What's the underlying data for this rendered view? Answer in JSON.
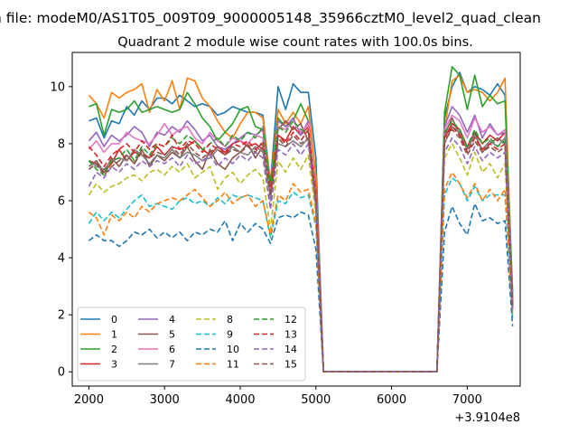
{
  "figure": {
    "suptitle": "n file: modeM0/AS1T05_009T09_9000005148_35966cztM0_level2_quad_clean",
    "title": "Quadrant 2 module wise count rates with 100.0s bins.",
    "offset_label": "+3.9104e8"
  },
  "chart_data": {
    "type": "line",
    "title": "Quadrant 2 module wise count rates with 100.0s bins.",
    "xlabel": "",
    "ylabel": "",
    "x_offset": 391040000,
    "xlim": [
      1780,
      7700
    ],
    "ylim": [
      -0.5,
      11.2
    ],
    "xticks": [
      2000,
      3000,
      4000,
      5000,
      6000,
      7000
    ],
    "yticks": [
      0,
      2,
      4,
      6,
      8,
      10
    ],
    "grid": false,
    "legend": {
      "placement": "lower-left",
      "columns": 4
    },
    "x": [
      2000,
      2100,
      2200,
      2300,
      2400,
      2500,
      2600,
      2700,
      2800,
      2900,
      3000,
      3100,
      3200,
      3300,
      3400,
      3500,
      3600,
      3700,
      3800,
      3900,
      4000,
      4100,
      4200,
      4300,
      4400,
      4500,
      4600,
      4700,
      4800,
      4900,
      5000,
      5100,
      5200,
      5300,
      5400,
      5500,
      5600,
      5700,
      5800,
      5900,
      6000,
      6100,
      6200,
      6300,
      6400,
      6500,
      6600,
      6700,
      6800,
      6900,
      7000,
      7100,
      7200,
      7300,
      7400,
      7500,
      7600
    ],
    "series": [
      {
        "name": "0",
        "color": "#1f77b4",
        "dash": "solid",
        "values": [
          8.8,
          8.9,
          8.2,
          8.8,
          8.7,
          9.3,
          9.0,
          9.5,
          9.2,
          9.6,
          9.6,
          9.4,
          9.7,
          9.5,
          9.3,
          9.4,
          9.3,
          9.0,
          9.1,
          9.3,
          9.2,
          9.1,
          9.1,
          9.0,
          6.6,
          10.0,
          9.2,
          10.1,
          9.8,
          9.8,
          7.5,
          0,
          0,
          0,
          0,
          0,
          0,
          0,
          0,
          0,
          0,
          0,
          0,
          0,
          0,
          0,
          0,
          8.9,
          10.0,
          10.5,
          9.8,
          10.0,
          9.9,
          9.7,
          10.1,
          9.7,
          2.8
        ]
      },
      {
        "name": "1",
        "color": "#ff7f0e",
        "dash": "solid",
        "values": [
          9.7,
          9.4,
          8.9,
          9.8,
          9.6,
          9.8,
          9.9,
          10.1,
          9.1,
          9.9,
          9.5,
          10.2,
          9.2,
          10.3,
          10.2,
          9.6,
          9.3,
          8.8,
          8.4,
          8.2,
          8.7,
          9.1,
          9.1,
          8.9,
          6.5,
          9.2,
          8.7,
          9.1,
          8.7,
          9.3,
          6.9,
          0,
          0,
          0,
          0,
          0,
          0,
          0,
          0,
          0,
          0,
          0,
          0,
          0,
          0,
          0,
          0,
          8.5,
          10.2,
          10.4,
          9.8,
          9.9,
          9.8,
          9.5,
          9.8,
          10.3,
          2.4
        ]
      },
      {
        "name": "2",
        "color": "#2ca02c",
        "dash": "solid",
        "values": [
          9.3,
          9.4,
          8.3,
          9.2,
          9.1,
          9.2,
          9.5,
          9.1,
          9.2,
          9.3,
          9.2,
          9.1,
          9.2,
          9.8,
          9.4,
          8.9,
          8.6,
          8.1,
          8.4,
          8.7,
          9.2,
          9.3,
          8.6,
          8.5,
          6.3,
          8.9,
          8.6,
          8.8,
          9.4,
          8.8,
          6.3,
          0,
          0,
          0,
          0,
          0,
          0,
          0,
          0,
          0,
          0,
          0,
          0,
          0,
          0,
          0,
          0,
          9.1,
          10.7,
          10.4,
          9.2,
          10.4,
          9.3,
          9.7,
          9.4,
          9.5,
          2.6
        ]
      },
      {
        "name": "3",
        "color": "#d62728",
        "dash": "solid",
        "values": [
          7.4,
          7.3,
          7.0,
          7.3,
          7.8,
          7.4,
          7.7,
          7.6,
          7.5,
          7.9,
          7.6,
          7.9,
          7.8,
          7.9,
          8.1,
          7.8,
          7.6,
          7.9,
          7.7,
          8.0,
          8.1,
          7.9,
          8.0,
          7.8,
          6.6,
          8.3,
          8.1,
          8.6,
          8.3,
          8.6,
          6.4,
          0,
          0,
          0,
          0,
          0,
          0,
          0,
          0,
          0,
          0,
          0,
          0,
          0,
          0,
          0,
          0,
          8.2,
          8.7,
          8.5,
          7.9,
          8.4,
          8.0,
          8.3,
          8.1,
          8.4,
          2.5
        ]
      },
      {
        "name": "4",
        "color": "#9467bd",
        "dash": "solid",
        "values": [
          8.1,
          8.4,
          7.9,
          8.3,
          8.1,
          8.3,
          8.6,
          8.4,
          7.9,
          8.4,
          8.3,
          8.6,
          8.4,
          8.8,
          8.5,
          8.1,
          8.3,
          7.9,
          7.8,
          8.0,
          8.2,
          8.4,
          8.3,
          8.5,
          6.0,
          8.8,
          8.6,
          8.9,
          8.3,
          8.8,
          6.1,
          0,
          0,
          0,
          0,
          0,
          0,
          0,
          0,
          0,
          0,
          0,
          0,
          0,
          0,
          0,
          0,
          8.6,
          9.3,
          9.0,
          8.4,
          9.0,
          8.2,
          8.7,
          8.3,
          8.4,
          2.4
        ]
      },
      {
        "name": "5",
        "color": "#8c564b",
        "dash": "solid",
        "values": [
          7.2,
          7.4,
          7.0,
          7.5,
          7.2,
          7.6,
          7.3,
          7.8,
          7.2,
          7.6,
          7.4,
          7.7,
          7.5,
          7.9,
          7.4,
          7.1,
          7.8,
          7.3,
          7.1,
          7.5,
          7.7,
          8.0,
          7.5,
          7.9,
          6.4,
          8.5,
          8.8,
          8.5,
          8.7,
          8.1,
          5.9,
          0,
          0,
          0,
          0,
          0,
          0,
          0,
          0,
          0,
          0,
          0,
          0,
          0,
          0,
          0,
          0,
          8.3,
          8.9,
          8.3,
          7.8,
          8.4,
          7.7,
          8.0,
          8.2,
          8.0,
          2.3
        ]
      },
      {
        "name": "6",
        "color": "#e377c2",
        "dash": "solid",
        "values": [
          7.8,
          8.1,
          7.7,
          8.0,
          8.0,
          8.4,
          8.2,
          8.1,
          8.0,
          8.3,
          8.7,
          8.3,
          8.5,
          8.6,
          8.2,
          8.0,
          8.4,
          8.1,
          7.9,
          8.2,
          8.1,
          8.0,
          8.3,
          8.2,
          6.2,
          8.6,
          8.5,
          8.8,
          8.4,
          8.7,
          6.2,
          0,
          0,
          0,
          0,
          0,
          0,
          0,
          0,
          0,
          0,
          0,
          0,
          0,
          0,
          0,
          0,
          8.5,
          9.0,
          8.8,
          8.2,
          8.9,
          8.4,
          8.6,
          8.3,
          8.5,
          2.4
        ]
      },
      {
        "name": "7",
        "color": "#7f7f7f",
        "dash": "solid",
        "values": [
          7.4,
          7.2,
          7.1,
          7.4,
          7.5,
          7.4,
          7.8,
          7.6,
          7.3,
          7.6,
          7.5,
          7.8,
          7.5,
          7.7,
          7.6,
          7.4,
          7.5,
          7.8,
          7.6,
          7.9,
          7.7,
          7.6,
          7.9,
          7.7,
          6.1,
          8.0,
          7.9,
          8.1,
          7.9,
          8.2,
          5.8,
          0,
          0,
          0,
          0,
          0,
          0,
          0,
          0,
          0,
          0,
          0,
          0,
          0,
          0,
          0,
          0,
          8.0,
          8.6,
          8.4,
          7.8,
          8.3,
          7.8,
          8.1,
          7.9,
          8.2,
          2.2
        ]
      },
      {
        "name": "8",
        "color": "#bcbd22",
        "dash": "dashed",
        "values": [
          6.2,
          6.6,
          6.3,
          6.5,
          6.6,
          6.8,
          6.9,
          6.7,
          7.0,
          7.1,
          6.9,
          7.2,
          7.0,
          7.3,
          6.8,
          7.0,
          7.2,
          6.4,
          6.8,
          7.0,
          6.6,
          6.9,
          7.1,
          6.8,
          5.0,
          7.4,
          7.0,
          7.5,
          7.1,
          7.6,
          5.5,
          0,
          0,
          0,
          0,
          0,
          0,
          0,
          0,
          0,
          0,
          0,
          0,
          0,
          0,
          0,
          0,
          7.5,
          8.0,
          7.5,
          6.9,
          7.7,
          7.0,
          7.3,
          6.8,
          7.3,
          2.0
        ]
      },
      {
        "name": "9",
        "color": "#17becf",
        "dash": "dashed",
        "values": [
          5.2,
          5.6,
          5.3,
          5.6,
          5.4,
          5.7,
          6.0,
          6.2,
          5.8,
          5.9,
          5.8,
          5.7,
          6.0,
          6.1,
          5.9,
          6.0,
          5.8,
          6.1,
          5.9,
          6.2,
          6.1,
          6.2,
          6.1,
          6.0,
          4.7,
          6.0,
          5.9,
          6.3,
          6.1,
          6.2,
          5.1,
          0,
          0,
          0,
          0,
          0,
          0,
          0,
          0,
          0,
          0,
          0,
          0,
          0,
          0,
          0,
          0,
          6.2,
          6.8,
          6.6,
          6.0,
          6.5,
          6.0,
          6.2,
          6.2,
          6.2,
          1.9
        ]
      },
      {
        "name": "10",
        "color": "#1f77b4",
        "dash": "dashed",
        "values": [
          4.6,
          4.8,
          4.6,
          4.6,
          4.4,
          4.6,
          4.9,
          4.8,
          5.0,
          4.7,
          4.9,
          4.7,
          4.9,
          4.6,
          4.9,
          4.8,
          5.0,
          4.9,
          5.3,
          4.6,
          5.2,
          4.9,
          5.2,
          5.0,
          4.5,
          5.4,
          5.5,
          5.4,
          5.6,
          5.5,
          4.3,
          0,
          0,
          0,
          0,
          0,
          0,
          0,
          0,
          0,
          0,
          0,
          0,
          0,
          0,
          0,
          0,
          4.9,
          5.8,
          5.2,
          4.8,
          5.9,
          5.3,
          5.4,
          5.2,
          5.3,
          1.6
        ]
      },
      {
        "name": "11",
        "color": "#ff7f0e",
        "dash": "dashed",
        "values": [
          5.6,
          5.4,
          4.8,
          5.5,
          5.3,
          5.6,
          5.4,
          5.8,
          5.6,
          5.9,
          6.0,
          6.1,
          6.0,
          6.2,
          6.4,
          6.1,
          5.8,
          6.0,
          6.3,
          5.9,
          6.1,
          6.2,
          5.8,
          6.0,
          4.8,
          6.2,
          6.0,
          6.6,
          6.3,
          6.4,
          5.2,
          0,
          0,
          0,
          0,
          0,
          0,
          0,
          0,
          0,
          0,
          0,
          0,
          0,
          0,
          0,
          0,
          6.4,
          7.0,
          6.6,
          6.1,
          6.6,
          6.0,
          6.4,
          6.0,
          6.4,
          2.1
        ]
      },
      {
        "name": "12",
        "color": "#2ca02c",
        "dash": "dashed",
        "values": [
          7.4,
          7.1,
          6.9,
          7.4,
          7.5,
          7.8,
          7.4,
          7.9,
          7.6,
          8.0,
          7.9,
          8.2,
          8.0,
          8.3,
          8.1,
          7.8,
          8.0,
          8.2,
          7.9,
          8.3,
          8.1,
          8.4,
          8.2,
          8.6,
          6.5,
          8.6,
          8.4,
          8.8,
          8.5,
          8.4,
          6.0,
          0,
          0,
          0,
          0,
          0,
          0,
          0,
          0,
          0,
          0,
          0,
          0,
          0,
          0,
          0,
          0,
          8.4,
          8.8,
          8.5,
          7.9,
          8.5,
          8.0,
          8.2,
          7.9,
          8.1,
          2.3
        ]
      },
      {
        "name": "13",
        "color": "#d62728",
        "dash": "dashed",
        "values": [
          7.9,
          7.6,
          7.2,
          7.6,
          7.8,
          8.0,
          7.7,
          8.1,
          7.8,
          8.0,
          7.9,
          8.3,
          7.8,
          8.1,
          8.0,
          7.7,
          8.0,
          7.8,
          7.6,
          8.0,
          7.9,
          8.1,
          7.8,
          8.0,
          6.3,
          8.3,
          8.0,
          8.4,
          8.1,
          8.5,
          6.1,
          0,
          0,
          0,
          0,
          0,
          0,
          0,
          0,
          0,
          0,
          0,
          0,
          0,
          0,
          0,
          0,
          8.2,
          8.6,
          8.3,
          7.7,
          8.2,
          7.8,
          8.0,
          7.8,
          8.0,
          2.3
        ]
      },
      {
        "name": "14",
        "color": "#9467bd",
        "dash": "dashed",
        "values": [
          6.5,
          7.0,
          6.8,
          7.2,
          7.0,
          7.3,
          7.1,
          7.4,
          7.2,
          7.4,
          7.3,
          7.5,
          7.2,
          7.6,
          7.3,
          7.4,
          7.6,
          7.2,
          7.5,
          7.3,
          7.6,
          7.4,
          7.7,
          7.5,
          5.7,
          7.8,
          7.6,
          8.0,
          7.6,
          8.0,
          5.8,
          0,
          0,
          0,
          0,
          0,
          0,
          0,
          0,
          0,
          0,
          0,
          0,
          0,
          0,
          0,
          0,
          7.7,
          8.2,
          7.9,
          7.3,
          7.9,
          7.4,
          7.7,
          7.5,
          7.7,
          2.2
        ]
      },
      {
        "name": "15",
        "color": "#8c564b",
        "dash": "dashed",
        "values": [
          7.1,
          7.3,
          6.9,
          7.2,
          7.4,
          7.6,
          7.3,
          7.7,
          7.5,
          7.7,
          7.6,
          7.9,
          7.6,
          8.0,
          7.7,
          7.5,
          7.7,
          7.9,
          7.6,
          7.8,
          7.7,
          7.9,
          7.7,
          8.1,
          6.2,
          8.2,
          7.9,
          8.3,
          8.0,
          8.2,
          5.9,
          0,
          0,
          0,
          0,
          0,
          0,
          0,
          0,
          0,
          0,
          0,
          0,
          0,
          0,
          0,
          0,
          8.1,
          8.5,
          8.2,
          7.6,
          8.1,
          7.7,
          7.9,
          7.7,
          7.9,
          2.3
        ]
      }
    ]
  }
}
